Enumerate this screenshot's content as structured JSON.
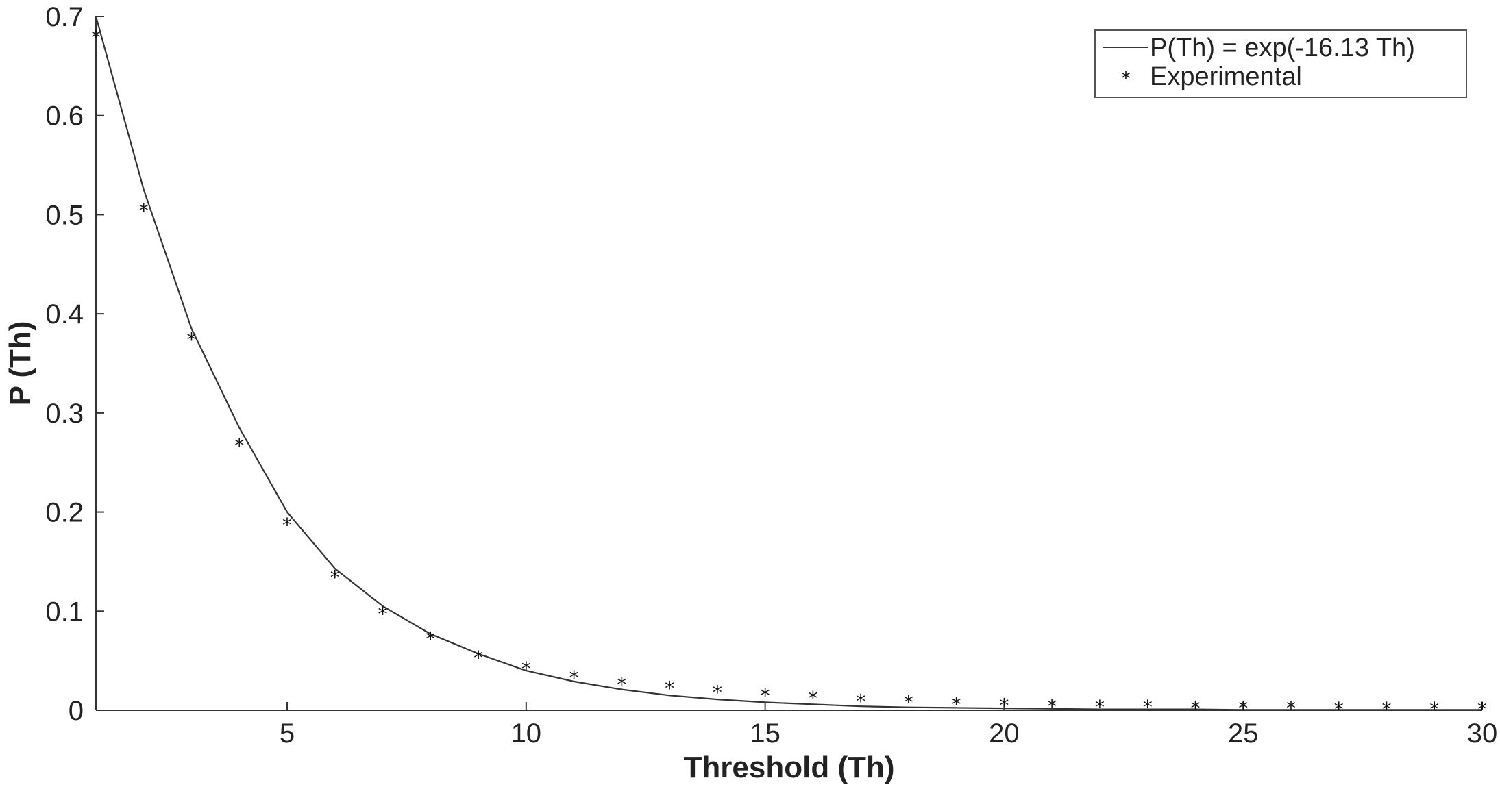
{
  "chart_data": {
    "type": "line",
    "title": "",
    "xlabel": "Threshold (Th)",
    "ylabel": "P (Th)",
    "xlim": [
      1,
      30
    ],
    "ylim": [
      0,
      0.7
    ],
    "xticks": [
      5,
      10,
      15,
      20,
      25,
      30
    ],
    "yticks": [
      0,
      0.1,
      0.2,
      0.3,
      0.4,
      0.5,
      0.6,
      0.7
    ],
    "grid": false,
    "legend_position": "top-right",
    "series": [
      {
        "name": "P(Th) = exp(-16.13 Th)",
        "style": "line",
        "color": "#333333",
        "x": [
          1,
          2,
          3,
          4,
          5,
          6,
          7,
          8,
          9,
          10,
          11,
          12,
          13,
          14,
          15,
          16,
          17,
          18,
          19,
          20,
          21,
          22,
          23,
          24,
          25,
          26,
          27,
          28,
          29,
          30
        ],
        "y": [
          0.7,
          0.525,
          0.385,
          0.285,
          0.2,
          0.143,
          0.105,
          0.077,
          0.057,
          0.04,
          0.029,
          0.021,
          0.015,
          0.011,
          0.008,
          0.006,
          0.004,
          0.003,
          0.0025,
          0.002,
          0.0015,
          0.001,
          0.001,
          0.001,
          0.0005,
          0.0005,
          0.0005,
          0.0005,
          0.0005,
          0.0005
        ]
      },
      {
        "name": "Experimental",
        "style": "marker",
        "marker": "*",
        "color": "#111111",
        "x": [
          1,
          2,
          3,
          4,
          5,
          6,
          7,
          8,
          9,
          10,
          11,
          12,
          13,
          14,
          15,
          16,
          17,
          18,
          19,
          20,
          21,
          22,
          23,
          24,
          25,
          26,
          27,
          28,
          29,
          30
        ],
        "y": [
          0.68,
          0.505,
          0.375,
          0.268,
          0.188,
          0.135,
          0.098,
          0.073,
          0.054,
          0.043,
          0.034,
          0.027,
          0.023,
          0.019,
          0.016,
          0.013,
          0.01,
          0.009,
          0.007,
          0.006,
          0.005,
          0.004,
          0.004,
          0.003,
          0.003,
          0.003,
          0.002,
          0.002,
          0.002,
          0.002
        ]
      }
    ]
  }
}
